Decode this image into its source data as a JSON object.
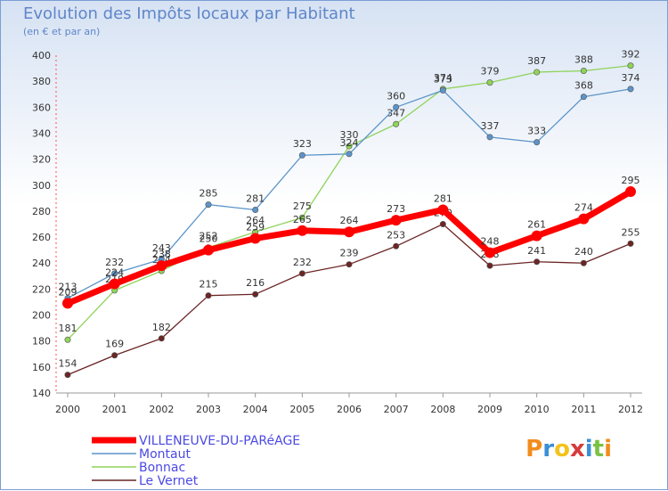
{
  "title": "Evolution des Impôts locaux par Habitant",
  "subtitle": "(en € et par an)",
  "logo_text": "Proxiti",
  "chart_data": {
    "type": "line",
    "x": [
      "2000",
      "2001",
      "2002",
      "2003",
      "2004",
      "2005",
      "2006",
      "2007",
      "2008",
      "2009",
      "2010",
      "2011",
      "2012"
    ],
    "ylim": [
      140,
      400
    ],
    "yticks": [
      140,
      160,
      180,
      200,
      220,
      240,
      260,
      280,
      300,
      320,
      340,
      360,
      380,
      400
    ],
    "grid": false,
    "legend_placement": "bottom-left",
    "series": [
      {
        "name": "VILLENEUVE-DU-PARéAGE",
        "color": "#ff0000",
        "values": [
          209,
          224,
          238,
          250,
          259,
          265,
          264,
          273,
          281,
          248,
          261,
          274,
          295
        ]
      },
      {
        "name": "Montaut",
        "color": "#5b94c9",
        "values": [
          213,
          232,
          243,
          285,
          281,
          323,
          324,
          360,
          373,
          337,
          333,
          368,
          374
        ]
      },
      {
        "name": "Bonnac",
        "color": "#8fd35a",
        "values": [
          181,
          219,
          234,
          252,
          264,
          275,
          330,
          347,
          374,
          379,
          387,
          388,
          392
        ]
      },
      {
        "name": "Le Vernet",
        "color": "#6b2525",
        "values": [
          154,
          169,
          182,
          215,
          216,
          232,
          239,
          253,
          270,
          238,
          241,
          240,
          255
        ]
      }
    ]
  }
}
